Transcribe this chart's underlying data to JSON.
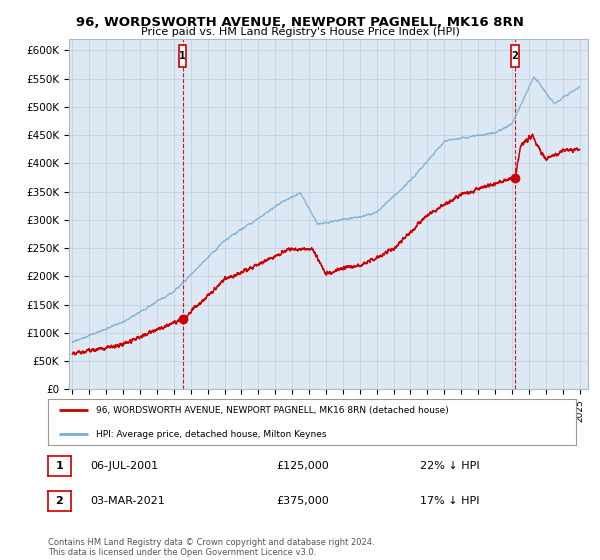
{
  "title": "96, WORDSWORTH AVENUE, NEWPORT PAGNELL, MK16 8RN",
  "subtitle": "Price paid vs. HM Land Registry's House Price Index (HPI)",
  "ylabel_ticks": [
    "£0",
    "£50K",
    "£100K",
    "£150K",
    "£200K",
    "£250K",
    "£300K",
    "£350K",
    "£400K",
    "£450K",
    "£500K",
    "£550K",
    "£600K"
  ],
  "ylim": [
    0,
    620000
  ],
  "xlim_start": 1994.8,
  "xlim_end": 2025.5,
  "sale1_x": 2001.52,
  "sale1_y": 125000,
  "sale1_label": "1",
  "sale2_x": 2021.17,
  "sale2_y": 375000,
  "sale2_label": "2",
  "red_line_color": "#cc0000",
  "blue_line_color": "#7aadd4",
  "chart_bg_color": "#dde8f5",
  "legend_red_label": "96, WORDSWORTH AVENUE, NEWPORT PAGNELL, MK16 8RN (detached house)",
  "legend_blue_label": "HPI: Average price, detached house, Milton Keynes",
  "annotation1_date": "06-JUL-2001",
  "annotation1_price": "£125,000",
  "annotation1_hpi": "22% ↓ HPI",
  "annotation2_date": "03-MAR-2021",
  "annotation2_price": "£375,000",
  "annotation2_hpi": "17% ↓ HPI",
  "footnote": "Contains HM Land Registry data © Crown copyright and database right 2024.\nThis data is licensed under the Open Government Licence v3.0.",
  "background_color": "#ffffff",
  "grid_color": "#c0ccd8"
}
